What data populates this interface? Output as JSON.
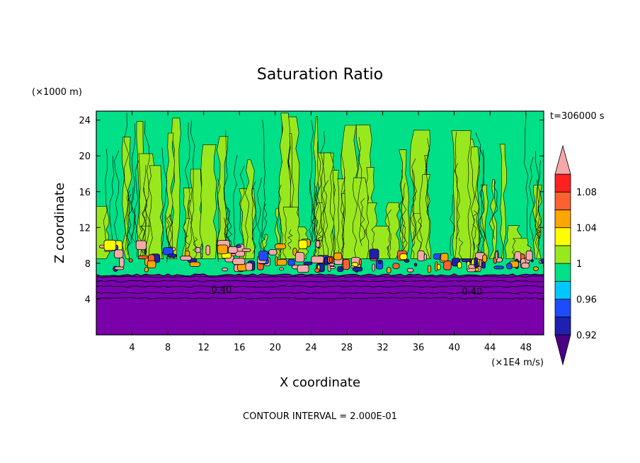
{
  "chart_data": {
    "type": "heatmap",
    "title": "Saturation Ratio",
    "xlabel": "X coordinate",
    "ylabel": "Z coordinate",
    "x_units": "(×1E4 m/s)",
    "y_units": "(×1000 m)",
    "time_label": "t=306000 s",
    "contour_interval_label": "CONTOUR INTERVAL = 2.000E-01",
    "xlim": [
      0,
      50
    ],
    "ylim": [
      0,
      25
    ],
    "x_ticks": [
      4,
      8,
      12,
      16,
      20,
      24,
      28,
      32,
      36,
      40,
      44,
      48
    ],
    "y_ticks": [
      4,
      8,
      12,
      16,
      20,
      24
    ],
    "contour_labels": [
      {
        "text": "0.40",
        "x": 14,
        "z": 5.1
      },
      {
        "text": "0.40",
        "x": 42,
        "z": 4.9
      }
    ],
    "colorbar": {
      "levels": [
        0.92,
        0.94,
        0.96,
        0.98,
        1.0,
        1.02,
        1.04,
        1.06,
        1.08,
        1.1
      ],
      "tick_labels": [
        "0.92",
        "0.96",
        "1",
        "1.04",
        "1.08"
      ],
      "colors": [
        "#4b0082",
        "#2020b0",
        "#1e4bff",
        "#00c8ff",
        "#00e088",
        "#99e81e",
        "#ffff00",
        "#ffa500",
        "#ff6030",
        "#ff2020",
        "#f4a8a8"
      ],
      "extend": "both"
    },
    "fields": {
      "dry_layer_top_z": 6.7,
      "dry_layer_color": "#7c00b0",
      "lower_layer_top_z": 4.0,
      "lower_layer_color": "#7a00aa",
      "background_color": "#00e088",
      "plume_color": "#99e81e",
      "cloud_base_color": "#f4a8a8"
    }
  }
}
